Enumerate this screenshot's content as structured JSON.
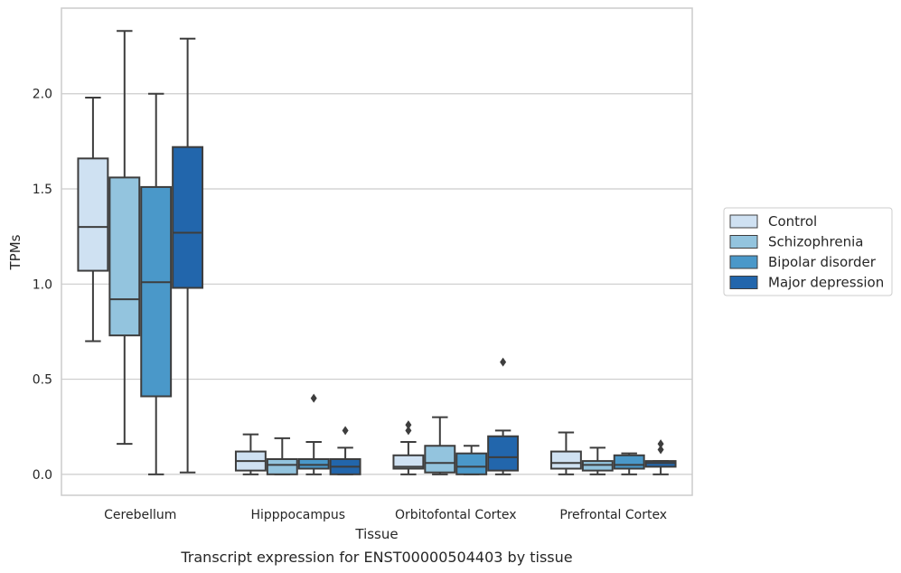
{
  "chart_data": {
    "type": "box",
    "title": "",
    "caption": "Transcript expression for ENST00000504403 by tissue",
    "xlabel": "Tissue",
    "ylabel": "TPMs",
    "ylim": [
      -0.11,
      2.45
    ],
    "yticks": [
      0.0,
      0.5,
      1.0,
      1.5,
      2.0
    ],
    "ytick_labels": [
      "0.0",
      "0.5",
      "1.0",
      "1.5",
      "2.0"
    ],
    "grid": "horizontal",
    "legend_position": "right",
    "categories": [
      "Cerebellum",
      "Hipppocampus",
      "Orbitofontal Cortex",
      "Prefrontal Cortex"
    ],
    "series": [
      {
        "name": "Control",
        "color": "#cfe1f2",
        "boxes": [
          {
            "whislo": 0.7,
            "q1": 1.07,
            "med": 1.3,
            "q3": 1.66,
            "whishi": 1.98,
            "fliers": []
          },
          {
            "whislo": 0.0,
            "q1": 0.02,
            "med": 0.07,
            "q3": 0.12,
            "whishi": 0.21,
            "fliers": []
          },
          {
            "whislo": 0.0,
            "q1": 0.03,
            "med": 0.04,
            "q3": 0.1,
            "whishi": 0.17,
            "fliers": [
              0.23,
              0.26
            ]
          },
          {
            "whislo": 0.0,
            "q1": 0.03,
            "med": 0.06,
            "q3": 0.12,
            "whishi": 0.22,
            "fliers": []
          }
        ]
      },
      {
        "name": "Schizophrenia",
        "color": "#93c4de",
        "boxes": [
          {
            "whislo": 0.16,
            "q1": 0.73,
            "med": 0.92,
            "q3": 1.56,
            "whishi": 2.33,
            "fliers": []
          },
          {
            "whislo": 0.0,
            "q1": 0.0,
            "med": 0.05,
            "q3": 0.08,
            "whishi": 0.19,
            "fliers": []
          },
          {
            "whislo": 0.0,
            "q1": 0.01,
            "med": 0.06,
            "q3": 0.15,
            "whishi": 0.3,
            "fliers": []
          },
          {
            "whislo": 0.0,
            "q1": 0.02,
            "med": 0.05,
            "q3": 0.07,
            "whishi": 0.14,
            "fliers": []
          }
        ]
      },
      {
        "name": "Bipolar disorder",
        "color": "#4a98c9",
        "boxes": [
          {
            "whislo": 0.0,
            "q1": 0.41,
            "med": 1.01,
            "q3": 1.51,
            "whishi": 2.0,
            "fliers": []
          },
          {
            "whislo": 0.0,
            "q1": 0.03,
            "med": 0.05,
            "q3": 0.08,
            "whishi": 0.17,
            "fliers": [
              0.4
            ]
          },
          {
            "whislo": 0.0,
            "q1": 0.0,
            "med": 0.04,
            "q3": 0.11,
            "whishi": 0.15,
            "fliers": []
          },
          {
            "whislo": 0.0,
            "q1": 0.03,
            "med": 0.05,
            "q3": 0.1,
            "whishi": 0.11,
            "fliers": []
          }
        ]
      },
      {
        "name": "Major depression",
        "color": "#2266ac",
        "boxes": [
          {
            "whislo": 0.01,
            "q1": 0.98,
            "med": 1.27,
            "q3": 1.72,
            "whishi": 2.29,
            "fliers": []
          },
          {
            "whislo": 0.0,
            "q1": 0.0,
            "med": 0.04,
            "q3": 0.08,
            "whishi": 0.14,
            "fliers": [
              0.23
            ]
          },
          {
            "whislo": 0.0,
            "q1": 0.02,
            "med": 0.09,
            "q3": 0.2,
            "whishi": 0.23,
            "fliers": [
              0.59
            ]
          },
          {
            "whislo": 0.0,
            "q1": 0.04,
            "med": 0.06,
            "q3": 0.07,
            "whishi": 0.07,
            "fliers": [
              0.13,
              0.16
            ]
          }
        ]
      }
    ]
  }
}
